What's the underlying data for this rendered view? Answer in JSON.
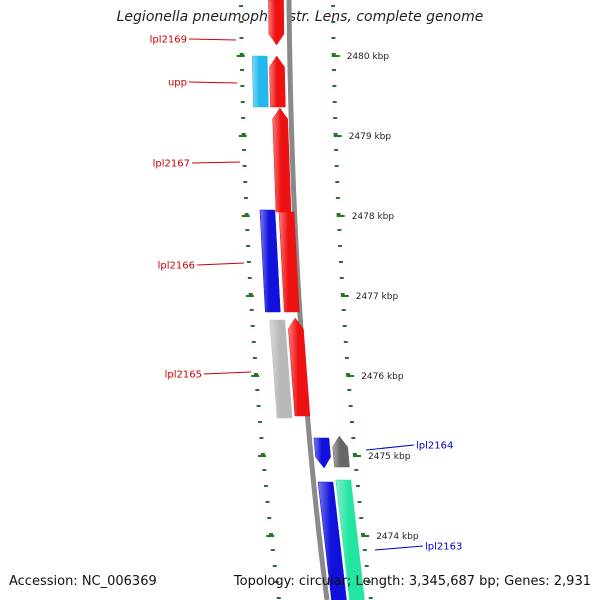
{
  "title": "Legionella pneumophila str. Lens, complete genome",
  "footer": {
    "accession": "Accession: NC_006369",
    "summary": "Topology: circular; Length: 3,345,687 bp; Genes: 2,931"
  },
  "colors": {
    "forward_red": "#ee1111",
    "reverse_blue": "#1111dd",
    "light_blue": "#22b8ee",
    "gray": "#b8b8b8",
    "dark_gray": "#666666",
    "teal": "#22e6a0",
    "tick_green": "#227722",
    "backbone": "#8a8a8a",
    "label_red": "#cc0000",
    "label_blue": "#0000cc"
  },
  "scale_labels": [
    "2480 kbp",
    "2479 kbp",
    "2478 kbp",
    "2477 kbp",
    "2476 kbp",
    "2475 kbp",
    "2474 kbp"
  ],
  "gene_labels": [
    {
      "text": "lpl2169",
      "color": "red"
    },
    {
      "text": "upp",
      "color": "red"
    },
    {
      "text": "lpl2167",
      "color": "red"
    },
    {
      "text": "lpl2166",
      "color": "red"
    },
    {
      "text": "lpl2165",
      "color": "red"
    },
    {
      "text": "lpl2164",
      "color": "blue"
    },
    {
      "text": "lpl2163",
      "color": "blue"
    }
  ]
}
